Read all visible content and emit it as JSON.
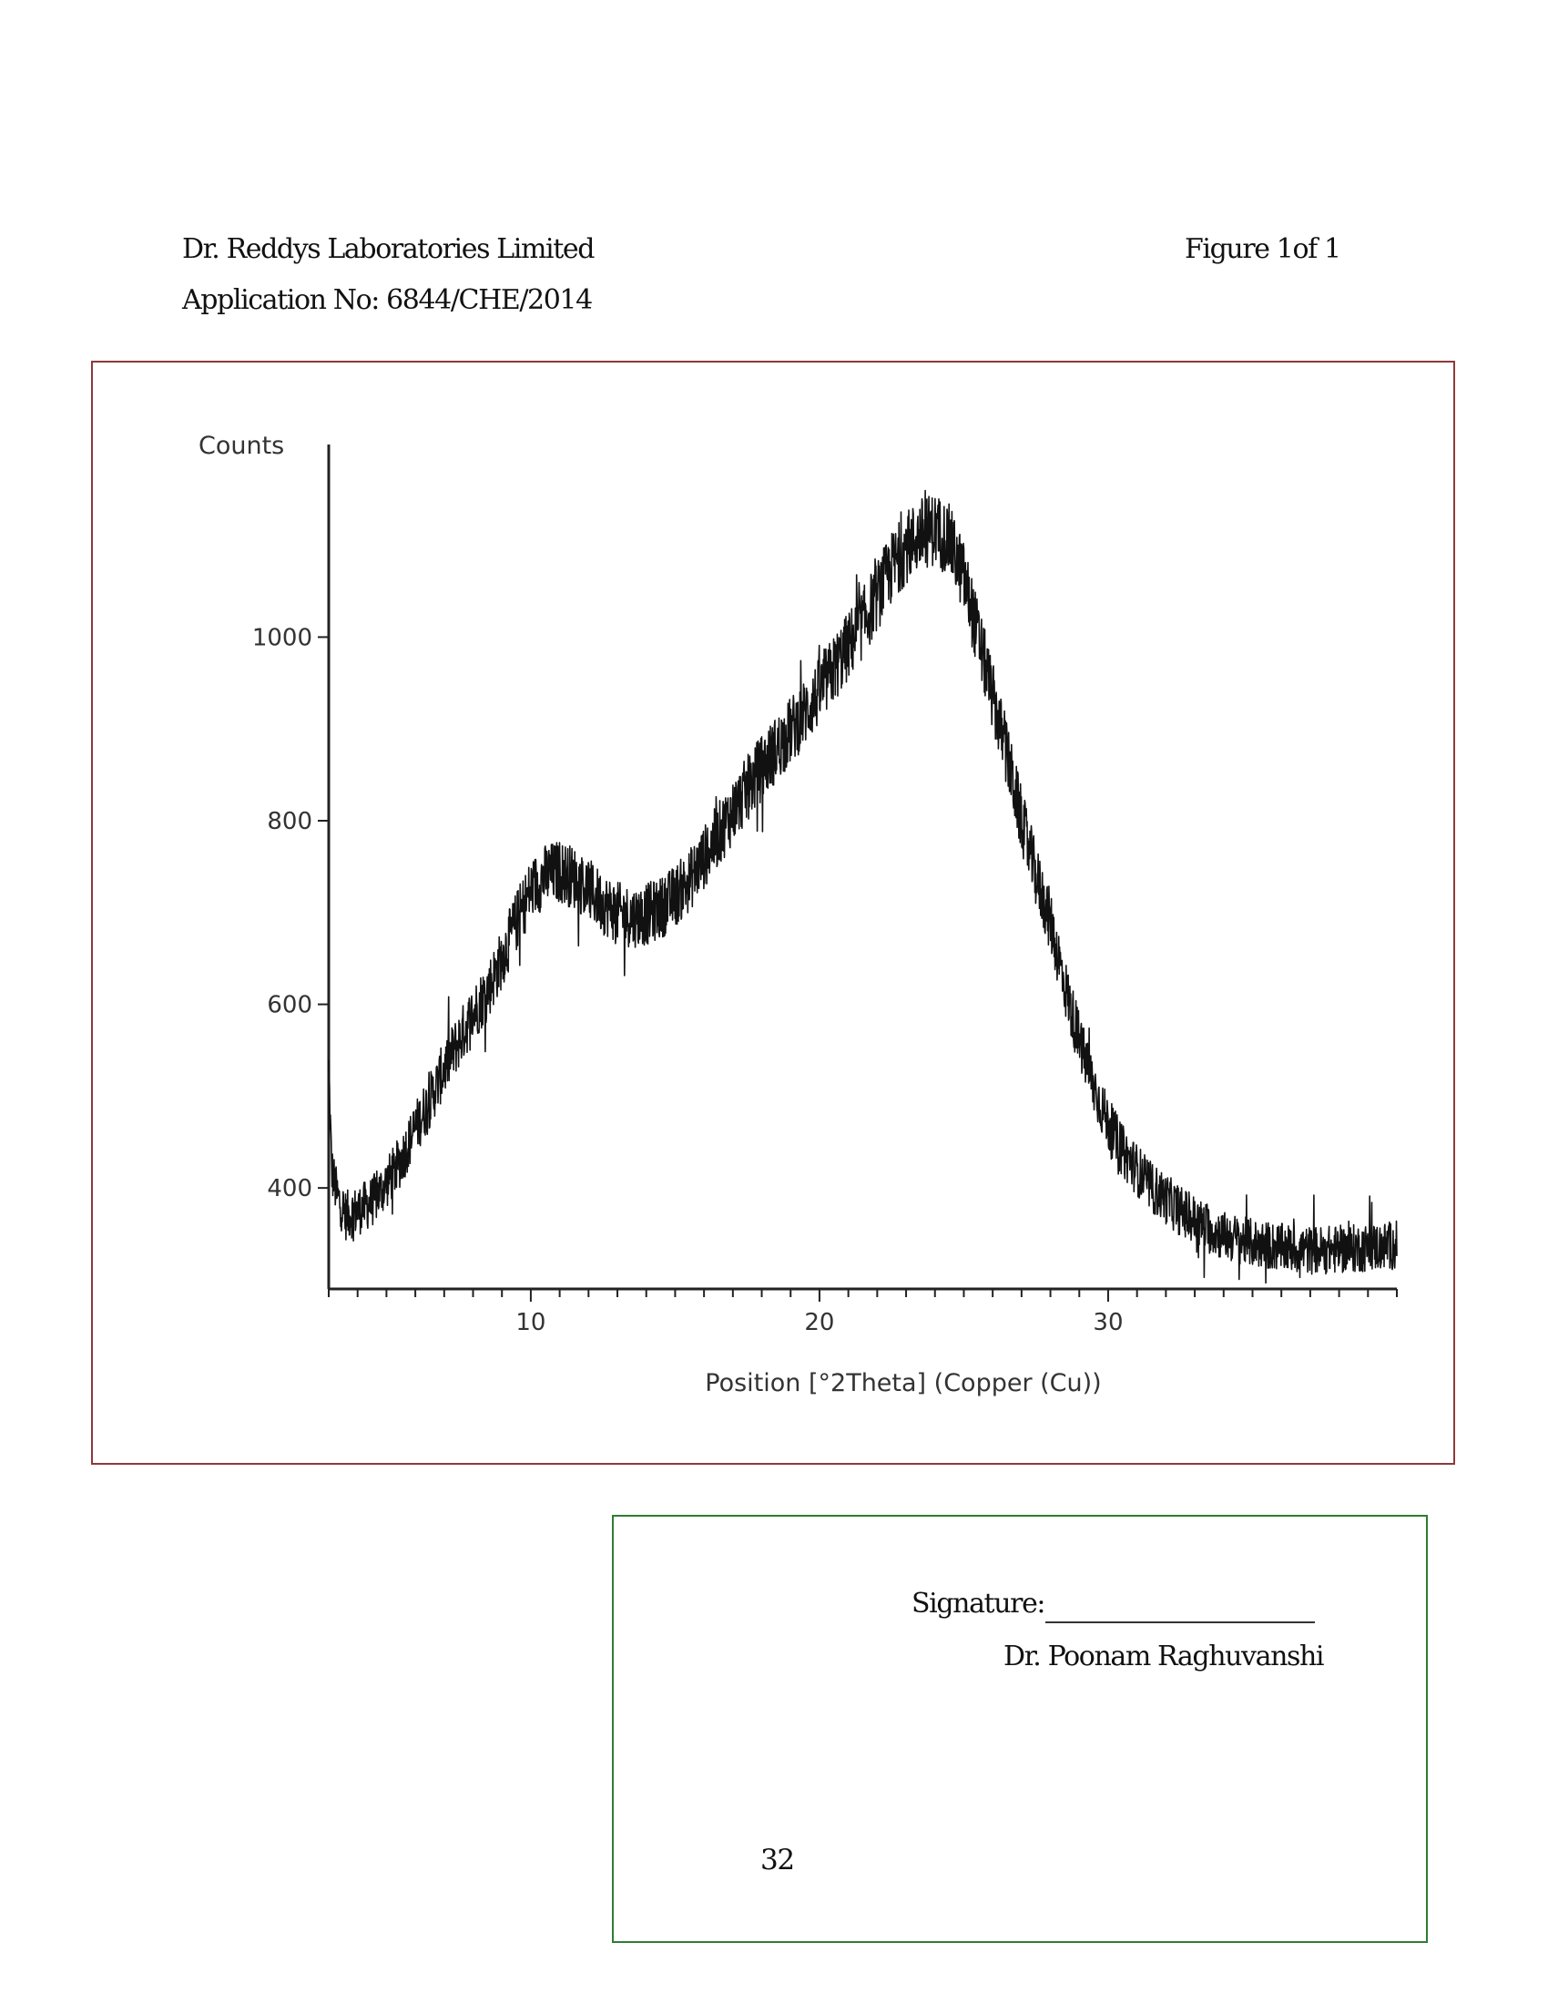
{
  "header": {
    "company": "Dr. Reddys Laboratories Limited",
    "application": "Application No: 6844/CHE/2014",
    "figure_label": "Figure 1of 1"
  },
  "signature": {
    "label": "Signature:",
    "name": "Dr. Poonam Raghuvanshi"
  },
  "page_number": "32",
  "colors": {
    "figure_border": "#8b3a3a",
    "signature_border": "#2e7d32",
    "trace": "#111111"
  },
  "chart_data": {
    "type": "line",
    "title": "",
    "xlabel": "Position [°2Theta] (Copper (Cu))",
    "ylabel": "Counts",
    "xlim": [
      3,
      40
    ],
    "ylim": [
      290,
      1180
    ],
    "xticks": [
      10,
      20,
      30
    ],
    "yticks": [
      400,
      600,
      800,
      1000
    ],
    "grid": false,
    "series": [
      {
        "values_xy": [
          [
            3.0,
            530
          ],
          [
            3.1,
            420
          ],
          [
            3.3,
            390
          ],
          [
            3.6,
            370
          ],
          [
            4.0,
            375
          ],
          [
            4.5,
            385
          ],
          [
            5.0,
            405
          ],
          [
            5.5,
            430
          ],
          [
            6.0,
            465
          ],
          [
            6.5,
            495
          ],
          [
            7.0,
            530
          ],
          [
            7.5,
            560
          ],
          [
            8.0,
            590
          ],
          [
            8.5,
            615
          ],
          [
            9.0,
            650
          ],
          [
            9.5,
            690
          ],
          [
            10.0,
            725
          ],
          [
            10.5,
            740
          ],
          [
            11.0,
            745
          ],
          [
            11.5,
            738
          ],
          [
            12.0,
            725
          ],
          [
            12.5,
            710
          ],
          [
            13.0,
            700
          ],
          [
            13.5,
            695
          ],
          [
            14.0,
            698
          ],
          [
            14.5,
            705
          ],
          [
            15.0,
            718
          ],
          [
            15.5,
            735
          ],
          [
            16.0,
            760
          ],
          [
            16.5,
            785
          ],
          [
            17.0,
            810
          ],
          [
            17.5,
            835
          ],
          [
            18.0,
            858
          ],
          [
            18.5,
            878
          ],
          [
            19.0,
            898
          ],
          [
            19.5,
            918
          ],
          [
            20.0,
            940
          ],
          [
            20.5,
            965
          ],
          [
            21.0,
            990
          ],
          [
            21.5,
            1015
          ],
          [
            22.0,
            1045
          ],
          [
            22.5,
            1075
          ],
          [
            23.0,
            1098
          ],
          [
            23.5,
            1112
          ],
          [
            24.0,
            1118
          ],
          [
            24.5,
            1105
          ],
          [
            25.0,
            1065
          ],
          [
            25.5,
            1000
          ],
          [
            26.0,
            935
          ],
          [
            26.5,
            870
          ],
          [
            27.0,
            800
          ],
          [
            27.5,
            740
          ],
          [
            28.0,
            690
          ],
          [
            28.5,
            620
          ],
          [
            29.0,
            560
          ],
          [
            29.5,
            510
          ],
          [
            30.0,
            470
          ],
          [
            30.5,
            440
          ],
          [
            31.0,
            420
          ],
          [
            31.5,
            400
          ],
          [
            32.0,
            388
          ],
          [
            32.5,
            375
          ],
          [
            33.0,
            365
          ],
          [
            33.5,
            355
          ],
          [
            34.0,
            348
          ],
          [
            35.0,
            340
          ],
          [
            36.0,
            335
          ],
          [
            37.0,
            332
          ],
          [
            38.0,
            333
          ],
          [
            39.0,
            335
          ],
          [
            40.0,
            338
          ]
        ]
      }
    ]
  }
}
